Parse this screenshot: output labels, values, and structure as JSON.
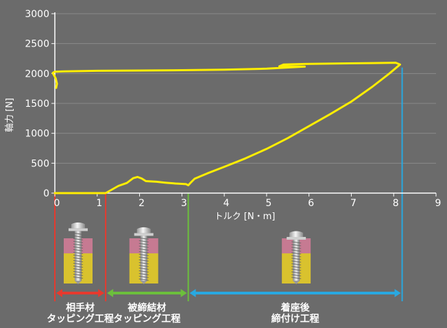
{
  "chart_data": {
    "type": "line",
    "xlabel": "トルク [N・m]",
    "ylabel": "軸力 [N]",
    "xlim": [
      0,
      9
    ],
    "ylim": [
      0,
      3000
    ],
    "xticks": [
      0,
      1,
      2,
      3,
      4,
      5,
      6,
      7,
      8,
      9
    ],
    "yticks": [
      0,
      500,
      1000,
      1500,
      2000,
      2500,
      3000
    ],
    "grid": true,
    "line_color": "#ffee00",
    "series": [
      {
        "points": [
          [
            0,
            0
          ],
          [
            1.0,
            0
          ],
          [
            1.2,
            0
          ],
          [
            1.3,
            40
          ],
          [
            1.5,
            120
          ],
          [
            1.7,
            170
          ],
          [
            1.85,
            250
          ],
          [
            1.95,
            270
          ],
          [
            2.05,
            245
          ],
          [
            2.15,
            200
          ],
          [
            2.4,
            190
          ],
          [
            2.6,
            175
          ],
          [
            2.85,
            160
          ],
          [
            3.0,
            155
          ],
          [
            3.1,
            150
          ],
          [
            3.15,
            130
          ],
          [
            3.2,
            170
          ],
          [
            3.3,
            240
          ],
          [
            3.6,
            330
          ],
          [
            4.0,
            440
          ],
          [
            4.5,
            580
          ],
          [
            5.0,
            740
          ],
          [
            5.5,
            920
          ],
          [
            6.0,
            1120
          ],
          [
            6.5,
            1320
          ],
          [
            7.0,
            1530
          ],
          [
            7.5,
            1780
          ],
          [
            7.9,
            2000
          ],
          [
            8.15,
            2150
          ],
          [
            8.05,
            2180
          ],
          [
            7.5,
            2175
          ],
          [
            6.5,
            2165
          ],
          [
            5.9,
            2160
          ],
          [
            5.4,
            2150
          ],
          [
            5.3,
            2120
          ],
          [
            5.9,
            2115
          ],
          [
            5.0,
            2080
          ],
          [
            4.0,
            2065
          ],
          [
            3.0,
            2055
          ],
          [
            2.0,
            2050
          ],
          [
            1.0,
            2045
          ],
          [
            0.2,
            2035
          ],
          [
            0,
            2030
          ],
          [
            -0.05,
            2010
          ],
          [
            0.02,
            1920
          ],
          [
            0.05,
            1830
          ],
          [
            0.03,
            1760
          ]
        ]
      }
    ]
  },
  "stages": [
    {
      "label": "相手材\nタッピング工程",
      "x_start": 0,
      "x_end": 1.2,
      "color": "#e63a2e"
    },
    {
      "label": "被締結材\nタッピング工程",
      "x_start": 1.2,
      "x_end": 3.15,
      "color": "#6cbf3c"
    },
    {
      "label": "着座後\n締付け工程",
      "x_start": 3.15,
      "x_end": 8.2,
      "color": "#29a8e0"
    }
  ],
  "illustrations": [
    {
      "icon": "screw-tapping-icon",
      "x": 0.55,
      "depth": 0.55
    },
    {
      "icon": "screw-tapping-icon",
      "x": 2.1,
      "depth": 0.8
    },
    {
      "icon": "screw-seated-icon",
      "x": 5.7,
      "depth": 1.0
    }
  ]
}
